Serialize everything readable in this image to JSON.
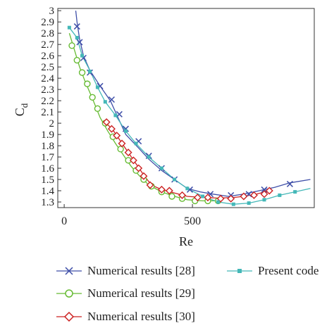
{
  "chart_data": {
    "type": "line",
    "xlabel": "Re",
    "ylabel_main": "C",
    "ylabel_sub": "d",
    "xlim": [
      -25,
      975
    ],
    "ylim": [
      1.25,
      3.02
    ],
    "xticks": [
      0,
      500
    ],
    "xtick_labels": [
      "0",
      "500"
    ],
    "yticks": [
      1.3,
      1.4,
      1.5,
      1.6,
      1.7,
      1.8,
      1.9,
      2.0,
      2.1,
      2.2,
      2.3,
      2.4,
      2.5,
      2.6,
      2.7,
      2.8,
      2.9,
      3.0
    ],
    "ytick_labels": [
      "1.3",
      "1.4",
      "1.5",
      "1.6",
      "1.7",
      "1.8",
      "1.9",
      "2",
      "2.1",
      "2.2",
      "2.3",
      "2.4",
      "2.5",
      "2.6",
      "2.7",
      "2.8",
      "2.9",
      "3"
    ],
    "grid": false,
    "legend_position": "bottom",
    "series": [
      {
        "name": "Numerical results [28]",
        "color": "#3f4fa8",
        "marker": "x",
        "curve": [
          [
            45,
            3.0
          ],
          [
            50,
            2.9
          ],
          [
            60,
            2.75
          ],
          [
            75,
            2.6
          ],
          [
            100,
            2.47
          ],
          [
            140,
            2.33
          ],
          [
            180,
            2.2
          ],
          [
            210,
            2.05
          ],
          [
            240,
            1.9
          ],
          [
            290,
            1.78
          ],
          [
            330,
            1.68
          ],
          [
            380,
            1.58
          ],
          [
            430,
            1.5
          ],
          [
            480,
            1.42
          ],
          [
            530,
            1.39
          ],
          [
            580,
            1.37
          ],
          [
            640,
            1.35
          ],
          [
            700,
            1.37
          ],
          [
            760,
            1.4
          ],
          [
            820,
            1.43
          ],
          [
            880,
            1.47
          ],
          [
            960,
            1.5
          ]
        ],
        "markers": [
          [
            50,
            2.86
          ],
          [
            60,
            2.72
          ],
          [
            75,
            2.58
          ],
          [
            100,
            2.45
          ],
          [
            140,
            2.33
          ],
          [
            185,
            2.21
          ],
          [
            215,
            2.08
          ],
          [
            240,
            1.95
          ],
          [
            290,
            1.84
          ],
          [
            330,
            1.71
          ],
          [
            380,
            1.6
          ],
          [
            430,
            1.5
          ],
          [
            490,
            1.41
          ],
          [
            570,
            1.37
          ],
          [
            650,
            1.36
          ],
          [
            720,
            1.37
          ],
          [
            780,
            1.41
          ],
          [
            880,
            1.46
          ]
        ]
      },
      {
        "name": "Numerical results [29]",
        "color": "#66bb33",
        "marker": "circle",
        "curve": [
          [
            20,
            2.8
          ],
          [
            40,
            2.65
          ],
          [
            60,
            2.5
          ],
          [
            80,
            2.38
          ],
          [
            110,
            2.22
          ],
          [
            140,
            2.05
          ],
          [
            170,
            1.93
          ],
          [
            200,
            1.82
          ],
          [
            230,
            1.72
          ],
          [
            260,
            1.62
          ],
          [
            290,
            1.54
          ],
          [
            330,
            1.45
          ],
          [
            380,
            1.39
          ],
          [
            430,
            1.35
          ],
          [
            480,
            1.32
          ],
          [
            540,
            1.31
          ],
          [
            600,
            1.31
          ]
        ],
        "markers": [
          [
            30,
            2.69
          ],
          [
            50,
            2.56
          ],
          [
            70,
            2.45
          ],
          [
            90,
            2.35
          ],
          [
            110,
            2.23
          ],
          [
            130,
            2.13
          ],
          [
            160,
            2.0
          ],
          [
            190,
            1.88
          ],
          [
            220,
            1.77
          ],
          [
            250,
            1.67
          ],
          [
            280,
            1.58
          ],
          [
            310,
            1.5
          ],
          [
            340,
            1.44
          ],
          [
            380,
            1.39
          ],
          [
            420,
            1.35
          ],
          [
            460,
            1.33
          ],
          [
            510,
            1.31
          ],
          [
            560,
            1.31
          ],
          [
            600,
            1.31
          ]
        ]
      },
      {
        "name": "Numerical results [30]",
        "color": "#cc2222",
        "marker": "diamond",
        "curve": [
          [
            160,
            2.01
          ],
          [
            190,
            1.94
          ],
          [
            220,
            1.84
          ],
          [
            250,
            1.74
          ],
          [
            280,
            1.64
          ],
          [
            310,
            1.54
          ],
          [
            340,
            1.45
          ],
          [
            380,
            1.41
          ],
          [
            430,
            1.38
          ],
          [
            480,
            1.35
          ],
          [
            540,
            1.34
          ],
          [
            600,
            1.335
          ],
          [
            660,
            1.34
          ],
          [
            700,
            1.35
          ],
          [
            750,
            1.37
          ],
          [
            800,
            1.4
          ]
        ],
        "markers": [
          [
            165,
            2.01
          ],
          [
            185,
            1.95
          ],
          [
            205,
            1.89
          ],
          [
            225,
            1.82
          ],
          [
            250,
            1.74
          ],
          [
            270,
            1.67
          ],
          [
            290,
            1.6
          ],
          [
            310,
            1.53
          ],
          [
            335,
            1.45
          ],
          [
            380,
            1.41
          ],
          [
            410,
            1.4
          ],
          [
            460,
            1.36
          ],
          [
            520,
            1.34
          ],
          [
            560,
            1.34
          ],
          [
            610,
            1.33
          ],
          [
            650,
            1.33
          ],
          [
            700,
            1.35
          ],
          [
            740,
            1.36
          ],
          [
            780,
            1.37
          ],
          [
            800,
            1.4
          ]
        ]
      },
      {
        "name": "Present code",
        "color": "#44b8b8",
        "marker": "square",
        "curve": [
          [
            20,
            2.85
          ],
          [
            50,
            2.76
          ],
          [
            70,
            2.6
          ],
          [
            100,
            2.47
          ],
          [
            130,
            2.32
          ],
          [
            160,
            2.19
          ],
          [
            200,
            2.07
          ],
          [
            240,
            1.93
          ],
          [
            280,
            1.82
          ],
          [
            330,
            1.7
          ],
          [
            380,
            1.6
          ],
          [
            430,
            1.5
          ],
          [
            480,
            1.42
          ],
          [
            540,
            1.35
          ],
          [
            600,
            1.3
          ],
          [
            660,
            1.28
          ],
          [
            720,
            1.29
          ],
          [
            780,
            1.32
          ],
          [
            840,
            1.36
          ],
          [
            900,
            1.39
          ],
          [
            960,
            1.42
          ]
        ],
        "markers": [
          [
            20,
            2.85
          ],
          [
            50,
            2.76
          ],
          [
            70,
            2.6
          ],
          [
            100,
            2.46
          ],
          [
            130,
            2.32
          ],
          [
            160,
            2.19
          ],
          [
            200,
            2.07
          ],
          [
            240,
            1.93
          ],
          [
            280,
            1.82
          ],
          [
            330,
            1.7
          ],
          [
            380,
            1.6
          ],
          [
            430,
            1.5
          ],
          [
            480,
            1.42
          ],
          [
            540,
            1.35
          ],
          [
            600,
            1.3
          ],
          [
            660,
            1.28
          ],
          [
            720,
            1.29
          ],
          [
            780,
            1.32
          ],
          [
            840,
            1.36
          ],
          [
            900,
            1.39
          ]
        ]
      }
    ]
  },
  "legend": {
    "items": [
      {
        "label": "Numerical results [28]",
        "marker": "x",
        "color": "#3f4fa8"
      },
      {
        "label": "Present code",
        "marker": "square",
        "color": "#44b8b8"
      },
      {
        "label": "Numerical results [29]",
        "marker": "circle",
        "color": "#66bb33"
      },
      {
        "label": "Numerical results [30]",
        "marker": "diamond",
        "color": "#cc2222"
      }
    ]
  }
}
